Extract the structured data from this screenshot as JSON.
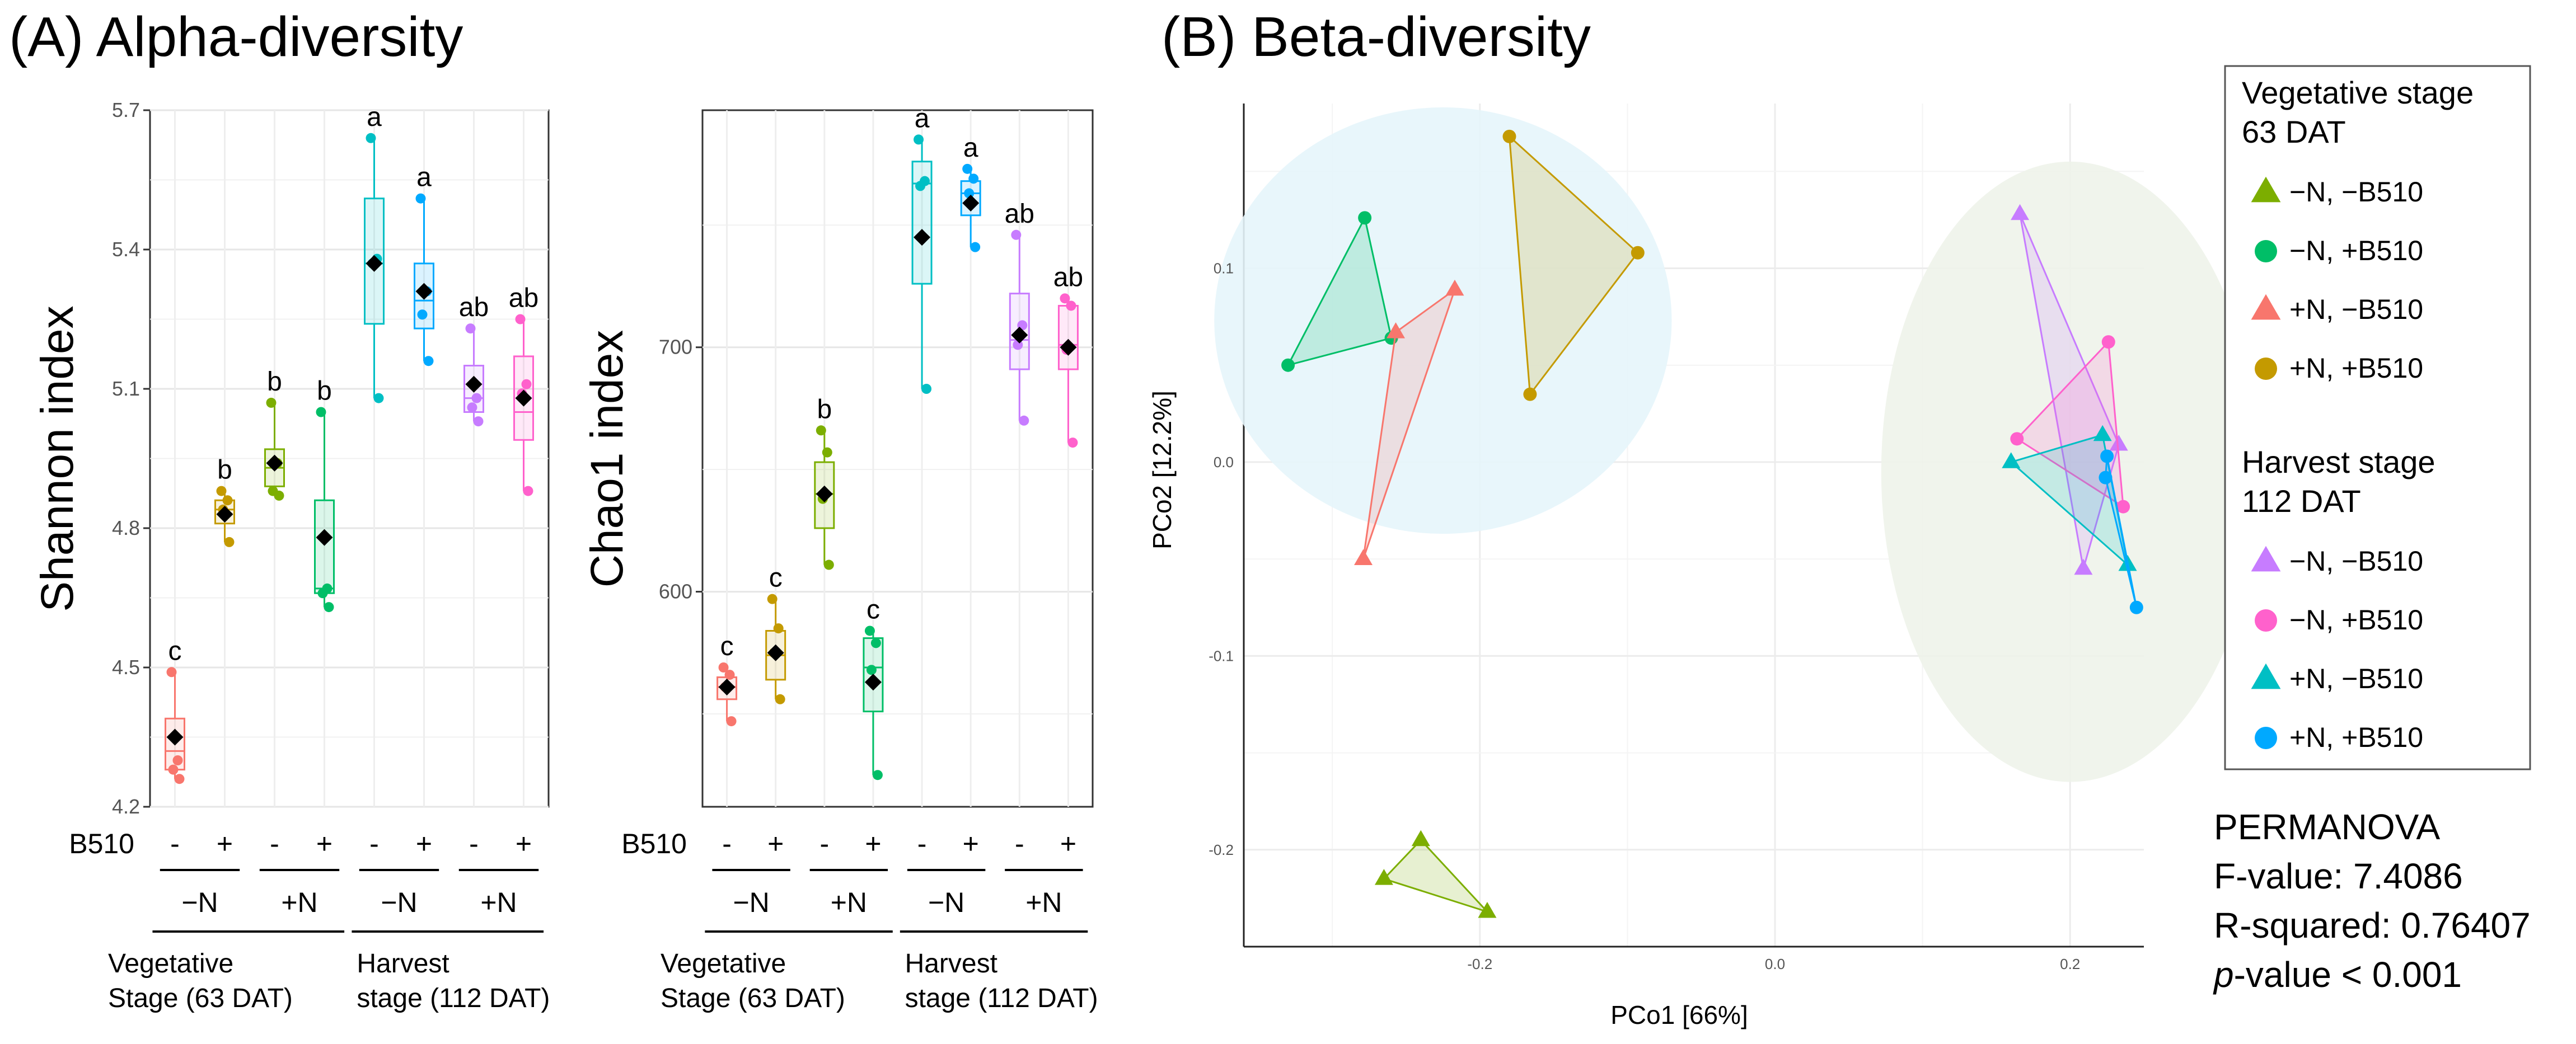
{
  "panel_a_title": "(A) Alpha-diversity",
  "panel_b_title": "(B) Beta-diversity",
  "colors": {
    "group": [
      "#F8766D",
      "#C49A00",
      "#7CAE00",
      "#00BE67",
      "#00BFC4",
      "#00A9FF",
      "#C77CFF",
      "#FF61CC"
    ],
    "beta": {
      "veg_nn": "#7CAE00",
      "veg_np": "#00BE67",
      "veg_pn": "#F8766D",
      "veg_pp": "#C49A00",
      "harv_nn": "#C77CFF",
      "harv_np": "#FF61CC",
      "harv_pn": "#00BFC4",
      "harv_pp": "#00A9FF"
    },
    "ellipse_veg": "#E5F5FB",
    "ellipse_harv": "#EEF3EA"
  },
  "group_axis": {
    "factor_label": "B510",
    "signs": [
      "-",
      "+",
      "-",
      "+",
      "-",
      "+",
      "-",
      "+"
    ],
    "n_labels": [
      "−N",
      "+N",
      "−N",
      "+N"
    ],
    "stage_labels": [
      {
        "line1": "Vegetative",
        "line2": "Stage (63 DAT)"
      },
      {
        "line1": "Harvest",
        "line2": "stage (112 DAT)"
      }
    ]
  },
  "chart_data": [
    {
      "type": "box",
      "title": "",
      "ylabel": "Shannon index",
      "xlabel": "",
      "ylim": [
        4.2,
        5.7
      ],
      "yticks": [
        4.2,
        4.5,
        4.8,
        5.1,
        5.4,
        5.7
      ],
      "ytick_labels": [
        "4.2",
        "4.5",
        "4.8",
        "5.1",
        "5.4",
        "5.7"
      ],
      "groups": [
        {
          "stage": "Vegetative",
          "n": "−N",
          "b510": "-",
          "min": 4.26,
          "q1": 4.28,
          "median": 4.32,
          "q3": 4.39,
          "max": 4.49,
          "mean": 4.35,
          "letter": "c",
          "points": [
            4.49,
            4.3,
            4.28,
            4.26
          ]
        },
        {
          "stage": "Vegetative",
          "n": "−N",
          "b510": "+",
          "min": 4.77,
          "q1": 4.81,
          "median": 4.84,
          "q3": 4.86,
          "max": 4.88,
          "mean": 4.83,
          "letter": "b",
          "points": [
            4.88,
            4.86,
            4.84,
            4.77
          ]
        },
        {
          "stage": "Vegetative",
          "n": "+N",
          "b510": "-",
          "min": 4.87,
          "q1": 4.89,
          "median": 4.93,
          "q3": 4.97,
          "max": 5.07,
          "mean": 4.94,
          "letter": "b",
          "points": [
            5.07,
            4.94,
            4.88,
            4.87
          ]
        },
        {
          "stage": "Vegetative",
          "n": "+N",
          "b510": "+",
          "min": 4.63,
          "q1": 4.66,
          "median": 4.67,
          "q3": 4.86,
          "max": 5.05,
          "mean": 4.78,
          "letter": "b",
          "points": [
            5.05,
            4.67,
            4.66,
            4.63
          ]
        },
        {
          "stage": "Harvest",
          "n": "−N",
          "b510": "-",
          "min": 5.08,
          "q1": 5.24,
          "median": 5.37,
          "q3": 5.51,
          "max": 5.64,
          "mean": 5.37,
          "letter": "a",
          "points": [
            5.64,
            5.38,
            5.37,
            5.08
          ]
        },
        {
          "stage": "Harvest",
          "n": "−N",
          "b510": "+",
          "min": 5.16,
          "q1": 5.23,
          "median": 5.29,
          "q3": 5.37,
          "max": 5.51,
          "mean": 5.31,
          "letter": "a",
          "points": [
            5.51,
            5.31,
            5.26,
            5.16
          ]
        },
        {
          "stage": "Harvest",
          "n": "+N",
          "b510": "-",
          "min": 5.03,
          "q1": 5.05,
          "median": 5.08,
          "q3": 5.15,
          "max": 5.23,
          "mean": 5.11,
          "letter": "ab",
          "points": [
            5.23,
            5.08,
            5.06,
            5.03
          ]
        },
        {
          "stage": "Harvest",
          "n": "+N",
          "b510": "+",
          "min": 4.88,
          "q1": 4.99,
          "median": 5.05,
          "q3": 5.17,
          "max": 5.25,
          "mean": 5.08,
          "letter": "ab",
          "points": [
            5.25,
            5.11,
            5.09,
            4.88
          ]
        }
      ]
    },
    {
      "type": "box",
      "title": "",
      "ylabel": "Chao1 index",
      "xlabel": "",
      "ylim": [
        512,
        797
      ],
      "yticks": [
        600,
        700
      ],
      "ytick_labels": [
        "600",
        "700"
      ],
      "groups": [
        {
          "stage": "Vegetative",
          "n": "−N",
          "b510": "-",
          "min": 547,
          "q1": 556,
          "median": 561,
          "q3": 565,
          "max": 569,
          "mean": 561,
          "letter": "c",
          "points": [
            569,
            566,
            561,
            547
          ]
        },
        {
          "stage": "Vegetative",
          "n": "−N",
          "b510": "+",
          "min": 556,
          "q1": 564,
          "median": 574,
          "q3": 584,
          "max": 597,
          "mean": 575,
          "letter": "c",
          "points": [
            597,
            585,
            575,
            556
          ]
        },
        {
          "stage": "Vegetative",
          "n": "+N",
          "b510": "-",
          "min": 611,
          "q1": 626,
          "median": 640,
          "q3": 653,
          "max": 666,
          "mean": 640,
          "letter": "b",
          "points": [
            666,
            657,
            638,
            611
          ]
        },
        {
          "stage": "Vegetative",
          "n": "+N",
          "b510": "+",
          "min": 525,
          "q1": 551,
          "median": 569,
          "q3": 581,
          "max": 584,
          "mean": 563,
          "letter": "c",
          "points": [
            584,
            579,
            568,
            525
          ]
        },
        {
          "stage": "Harvest",
          "n": "−N",
          "b510": "-",
          "min": 683,
          "q1": 726,
          "median": 767,
          "q3": 776,
          "max": 785,
          "mean": 745,
          "letter": "a",
          "points": [
            785,
            768,
            766,
            683
          ]
        },
        {
          "stage": "Harvest",
          "n": "−N",
          "b510": "+",
          "min": 741,
          "q1": 754,
          "median": 763,
          "q3": 768,
          "max": 773,
          "mean": 759,
          "letter": "a",
          "points": [
            773,
            769,
            763,
            741
          ]
        },
        {
          "stage": "Harvest",
          "n": "+N",
          "b510": "-",
          "min": 670,
          "q1": 691,
          "median": 703,
          "q3": 722,
          "max": 746,
          "mean": 705,
          "letter": "ab",
          "points": [
            746,
            709,
            701,
            670
          ]
        },
        {
          "stage": "Harvest",
          "n": "+N",
          "b510": "+",
          "min": 661,
          "q1": 691,
          "median": 701,
          "q3": 717,
          "max": 720,
          "mean": 700,
          "letter": "ab",
          "points": [
            720,
            717,
            699,
            661
          ]
        }
      ]
    },
    {
      "type": "scatter",
      "title": "(B) Beta-diversity",
      "xlabel": "PCo1 [66%]",
      "ylabel": "PCo2 [12.2%]",
      "xlim": [
        -0.36,
        0.25
      ],
      "ylim": [
        -0.25,
        0.185
      ],
      "xticks": [
        -0.2,
        0.0,
        0.2
      ],
      "xtick_labels": [
        "-0.2",
        "0.0",
        "0.2"
      ],
      "yticks": [
        -0.2,
        -0.1,
        0.0,
        0.1
      ],
      "ytick_labels": [
        "-0.2",
        "-0.1",
        "0.0",
        "0.1"
      ],
      "ellipses": [
        {
          "name": "Vegetative",
          "cx": -0.225,
          "cy": 0.073,
          "rx": 0.155,
          "ry": 0.11,
          "color_key": "ellipse_veg"
        },
        {
          "name": "Harvest",
          "cx": 0.2,
          "cy": -0.005,
          "rx": 0.128,
          "ry": 0.16,
          "color_key": "ellipse_harv"
        }
      ],
      "series": [
        {
          "name": "veg_nn",
          "label": "−N, −B510",
          "marker": "triangle",
          "points": [
            [
              -0.24,
              -0.195
            ],
            [
              -0.265,
              -0.215
            ],
            [
              -0.195,
              -0.232
            ]
          ]
        },
        {
          "name": "veg_np",
          "label": "−N, +B510",
          "marker": "circle",
          "points": [
            [
              -0.278,
              0.126
            ],
            [
              -0.33,
              0.05
            ],
            [
              -0.26,
              0.064
            ]
          ]
        },
        {
          "name": "veg_pn",
          "label": "+N, −B510",
          "marker": "triangle",
          "points": [
            [
              -0.217,
              0.089
            ],
            [
              -0.257,
              0.067
            ],
            [
              -0.279,
              -0.05
            ]
          ]
        },
        {
          "name": "veg_pp",
          "label": "+N, +B510",
          "marker": "circle",
          "points": [
            [
              -0.18,
              0.168
            ],
            [
              -0.093,
              0.108
            ],
            [
              -0.166,
              0.035
            ]
          ]
        },
        {
          "name": "harv_nn",
          "label": "−N, −B510",
          "marker": "triangle",
          "points": [
            [
              0.166,
              0.128
            ],
            [
              0.233,
              0.009
            ],
            [
              0.209,
              -0.055
            ]
          ]
        },
        {
          "name": "harv_np",
          "label": "−N, +B510",
          "marker": "circle",
          "points": [
            [
              0.226,
              0.062
            ],
            [
              0.164,
              0.012
            ],
            [
              0.236,
              -0.023
            ]
          ]
        },
        {
          "name": "harv_pn",
          "label": "+N, −B510",
          "marker": "triangle",
          "points": [
            [
              0.222,
              0.014
            ],
            [
              0.16,
              0.0
            ],
            [
              0.239,
              -0.053
            ]
          ]
        },
        {
          "name": "harv_pp",
          "label": "+N, +B510",
          "marker": "circle",
          "points": [
            [
              0.225,
              0.003
            ],
            [
              0.224,
              -0.008
            ],
            [
              0.245,
              -0.075
            ]
          ]
        }
      ],
      "legend": {
        "position": "right",
        "sections": [
          {
            "title_line1": "Vegetative stage",
            "title_line2": "63 DAT",
            "items": [
              {
                "label": "−N, −B510",
                "series": "veg_nn",
                "marker": "triangle"
              },
              {
                "label": "−N, +B510",
                "series": "veg_np",
                "marker": "circle"
              },
              {
                "label": "+N, −B510",
                "series": "veg_pn",
                "marker": "triangle"
              },
              {
                "label": "+N, +B510",
                "series": "veg_pp",
                "marker": "circle"
              }
            ]
          },
          {
            "title_line1": "Harvest stage",
            "title_line2": "112 DAT",
            "items": [
              {
                "label": "−N, −B510",
                "series": "harv_nn",
                "marker": "triangle"
              },
              {
                "label": "−N, +B510",
                "series": "harv_np",
                "marker": "circle"
              },
              {
                "label": "+N, −B510",
                "series": "harv_pn",
                "marker": "triangle"
              },
              {
                "label": "+N, +B510",
                "series": "harv_pp",
                "marker": "circle"
              }
            ]
          }
        ]
      },
      "permanova": {
        "title": "PERMANOVA",
        "f_value": "F-value: 7.4086",
        "r_squared": "R-squared: 0.76407",
        "p_prefix": "p",
        "p_rest": "-value < 0.001"
      }
    }
  ]
}
